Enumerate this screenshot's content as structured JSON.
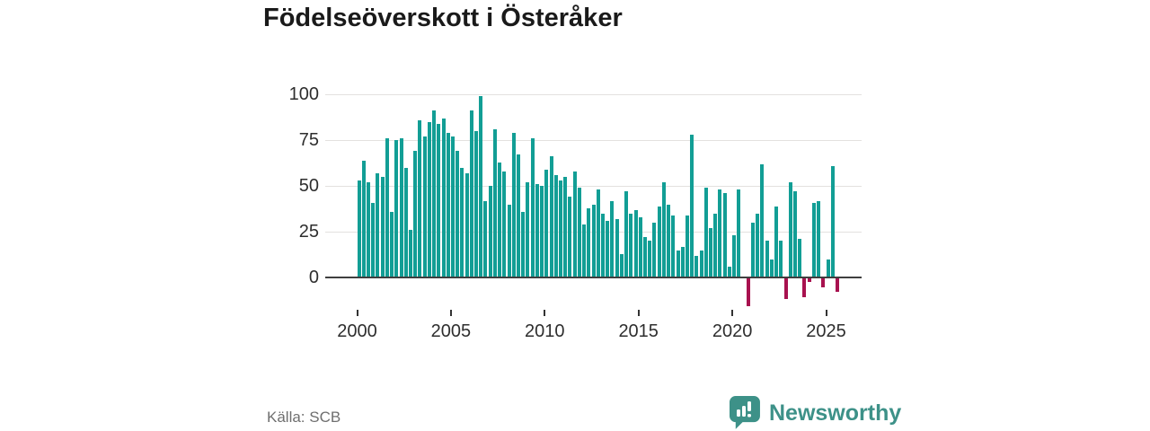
{
  "title": "Födelseöverskott i Österåker",
  "source": "Källa: SCB",
  "brand": {
    "name": "Newsworthy",
    "color": "#3d9188"
  },
  "chart_data": {
    "type": "bar",
    "title": "Födelseöverskott i Österåker",
    "xlabel": "",
    "ylabel": "",
    "period": "quarterly",
    "start_year": 2000,
    "start_quarter": 1,
    "values": [
      53,
      64,
      52,
      41,
      57,
      55,
      76,
      36,
      75,
      76,
      60,
      26,
      69,
      86,
      77,
      85,
      91,
      84,
      87,
      79,
      77,
      69,
      60,
      57,
      91,
      80,
      99,
      42,
      50,
      81,
      63,
      58,
      40,
      79,
      67,
      36,
      52,
      76,
      51,
      50,
      59,
      66,
      56,
      53,
      55,
      44,
      58,
      49,
      29,
      38,
      40,
      48,
      35,
      31,
      42,
      32,
      13,
      47,
      35,
      37,
      33,
      22,
      20,
      30,
      39,
      52,
      40,
      34,
      15,
      17,
      34,
      78,
      12,
      15,
      49,
      27,
      35,
      48,
      46,
      6,
      23,
      48,
      0,
      -15,
      30,
      35,
      62,
      20,
      10,
      39,
      20,
      -11,
      52,
      47,
      21,
      -10,
      -2,
      41,
      42,
      -5,
      10,
      61,
      -7
    ],
    "y_ticks": [
      0,
      25,
      50,
      75,
      100
    ],
    "x_ticks": [
      2000,
      2005,
      2010,
      2015,
      2020,
      2025
    ],
    "ylim": [
      -16,
      100
    ],
    "grid": true,
    "legend": "none",
    "bar_color_positive": "#129e95",
    "bar_color_negative": "#a8124f",
    "axis_line_color": "#3f3f3f",
    "gridline_color": "#e3e1df"
  }
}
